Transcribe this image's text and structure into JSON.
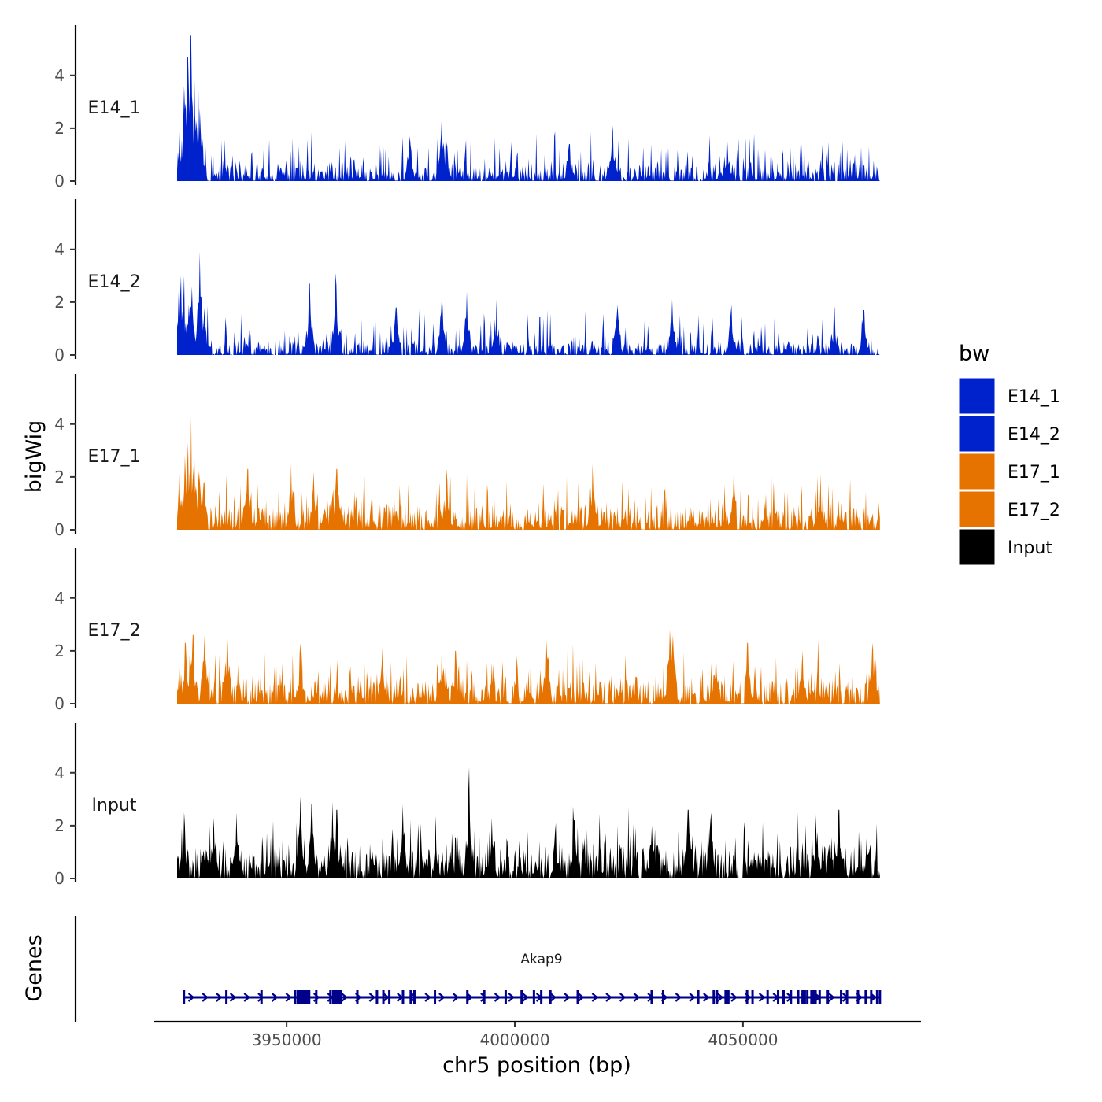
{
  "chart_data": {
    "type": "area",
    "ylabel": "bigWig",
    "xlabel": "chr5 position (bp)",
    "genes_label": "Genes",
    "ylim": [
      0,
      5.9
    ],
    "y_ticks": [
      0,
      2,
      4
    ],
    "y_tick_labels": [
      "0",
      "2",
      "4"
    ],
    "xlim": [
      3921000,
      4089000
    ],
    "region": [
      3926000,
      4080000
    ],
    "x_ticks": [
      3950000,
      4000000,
      4050000
    ],
    "x_tick_labels": [
      "3950000",
      "4000000",
      "4050000"
    ],
    "series": [
      {
        "name": "E14_1",
        "color": "#0022cc",
        "baseline": 0.35,
        "noise": 0.9,
        "seed": 11,
        "peaks": [
          [
            3926500,
            1.9
          ],
          [
            3927600,
            3.6
          ],
          [
            3928300,
            4.7
          ],
          [
            3929000,
            5.5
          ],
          [
            3929800,
            4.2
          ],
          [
            3930600,
            4.1
          ],
          [
            3931700,
            1.6
          ],
          [
            3984000,
            2.5
          ],
          [
            3984900,
            1.8
          ],
          [
            3977000,
            1.7
          ],
          [
            4021500,
            2.1
          ],
          [
            4046500,
            1.8
          ],
          [
            4012000,
            1.4
          ]
        ],
        "dips": [
          [
            3933000,
            800
          ],
          [
            3943000,
            500
          ],
          [
            3956500,
            600
          ],
          [
            3968000,
            500
          ],
          [
            3974000,
            800
          ],
          [
            3981500,
            700
          ],
          [
            4004000,
            500
          ],
          [
            4018000,
            600
          ],
          [
            4034500,
            800
          ],
          [
            4041000,
            500
          ],
          [
            4049500,
            600
          ],
          [
            4068000,
            400
          ]
        ]
      },
      {
        "name": "E14_2",
        "color": "#0022cc",
        "baseline": 0.3,
        "noise": 0.95,
        "seed": 23,
        "peaks": [
          [
            3926400,
            2.4
          ],
          [
            3926800,
            3.0
          ],
          [
            3927500,
            3.0
          ],
          [
            3929200,
            2.6
          ],
          [
            3931000,
            3.9
          ],
          [
            3932000,
            1.8
          ],
          [
            3955000,
            2.7
          ],
          [
            3960800,
            3.1
          ],
          [
            3974000,
            1.8
          ],
          [
            3984000,
            2.2
          ],
          [
            3989500,
            2.4
          ],
          [
            3996000,
            2.1
          ],
          [
            4022500,
            1.9
          ],
          [
            4034500,
            2.1
          ],
          [
            4047500,
            1.9
          ],
          [
            4070000,
            1.8
          ],
          [
            4076500,
            1.7
          ]
        ],
        "dips": [
          [
            3938000,
            400
          ],
          [
            3947000,
            600
          ],
          [
            3963500,
            500
          ],
          [
            3970000,
            800
          ],
          [
            3981000,
            500
          ],
          [
            4004000,
            600
          ],
          [
            4011500,
            400
          ],
          [
            4016000,
            500
          ],
          [
            4030500,
            800
          ],
          [
            4038000,
            500
          ],
          [
            4050500,
            600
          ],
          [
            4056500,
            500
          ],
          [
            4063000,
            400
          ],
          [
            4080000,
            600
          ]
        ]
      },
      {
        "name": "E17_1",
        "color": "#e67300",
        "baseline": 0.55,
        "noise": 1.0,
        "seed": 37,
        "peaks": [
          [
            3926500,
            2.2
          ],
          [
            3927700,
            2.8
          ],
          [
            3928400,
            3.3
          ],
          [
            3929100,
            4.3
          ],
          [
            3929800,
            3.0
          ],
          [
            3930800,
            2.2
          ],
          [
            3931900,
            1.8
          ],
          [
            3941500,
            2.3
          ],
          [
            3951000,
            2.5
          ],
          [
            3956000,
            2.2
          ],
          [
            3961000,
            2.3
          ],
          [
            3985000,
            2.3
          ],
          [
            4017000,
            2.5
          ],
          [
            4048000,
            2.4
          ],
          [
            4067000,
            2.1
          ]
        ],
        "dips": [
          [
            3933000,
            600
          ],
          [
            3957000,
            400
          ],
          [
            3980000,
            500
          ],
          [
            3992000,
            400
          ],
          [
            4000000,
            500
          ],
          [
            4011000,
            500
          ],
          [
            4028000,
            800
          ],
          [
            4036000,
            500
          ],
          [
            4049000,
            700
          ],
          [
            4053000,
            500
          ],
          [
            4064000,
            400
          ],
          [
            4073000,
            400
          ]
        ]
      },
      {
        "name": "E17_2",
        "color": "#e67300",
        "baseline": 0.55,
        "noise": 1.0,
        "seed": 53,
        "peaks": [
          [
            3926500,
            1.4
          ],
          [
            3927800,
            2.3
          ],
          [
            3929500,
            2.6
          ],
          [
            3932000,
            2.6
          ],
          [
            3937000,
            2.8
          ],
          [
            3953000,
            2.3
          ],
          [
            3971000,
            2.1
          ],
          [
            3984000,
            2.3
          ],
          [
            3987000,
            2.0
          ],
          [
            4007000,
            2.4
          ],
          [
            4034000,
            2.8
          ],
          [
            4034700,
            2.6
          ],
          [
            4044000,
            2.0
          ],
          [
            4051000,
            2.3
          ],
          [
            4063000,
            2.0
          ],
          [
            4078500,
            2.3
          ]
        ],
        "dips": [
          [
            3935000,
            400
          ],
          [
            3946000,
            500
          ],
          [
            3960000,
            400
          ],
          [
            3976000,
            500
          ],
          [
            3999000,
            600
          ],
          [
            4004500,
            400
          ],
          [
            4020000,
            800
          ],
          [
            4030000,
            600
          ],
          [
            4040000,
            400
          ],
          [
            4050000,
            700
          ],
          [
            4059000,
            400
          ],
          [
            4072000,
            500
          ]
        ]
      },
      {
        "name": "Input",
        "color": "#000000",
        "baseline": 0.75,
        "noise": 1.0,
        "seed": 71,
        "peaks": [
          [
            3927500,
            2.5
          ],
          [
            3934000,
            2.3
          ],
          [
            3939000,
            2.5
          ],
          [
            3953000,
            3.1
          ],
          [
            3955500,
            2.8
          ],
          [
            3960000,
            2.9
          ],
          [
            3961000,
            2.6
          ],
          [
            3975500,
            2.8
          ],
          [
            3990000,
            4.2
          ],
          [
            3995000,
            2.3
          ],
          [
            4009000,
            2.1
          ],
          [
            4013000,
            2.2
          ],
          [
            4030000,
            2.0
          ],
          [
            4038000,
            2.6
          ],
          [
            4043000,
            2.5
          ],
          [
            4066000,
            2.4
          ],
          [
            4071000,
            2.6
          ]
        ],
        "dips": [
          [
            4049500,
            1100
          ]
        ]
      }
    ],
    "legend": {
      "title": "bw",
      "entries": [
        {
          "label": "E14_1",
          "color": "#0022cc"
        },
        {
          "label": "E14_2",
          "color": "#0022cc"
        },
        {
          "label": "E17_1",
          "color": "#e67300"
        },
        {
          "label": "E17_2",
          "color": "#e67300"
        },
        {
          "label": "Input",
          "color": "#000000"
        }
      ]
    },
    "gene": {
      "name": "Akap9",
      "start": 3927500,
      "end": 4080000,
      "strand": "+",
      "color": "#00008b",
      "exons": [
        3927500,
        3936800,
        3944500,
        3951800,
        3952400,
        3953000,
        3953600,
        3954300,
        3956500,
        3959600,
        3960200,
        3960800,
        3961400,
        3965500,
        3969800,
        3971200,
        3972500,
        3975500,
        3977200,
        3978000,
        3982500,
        3989600,
        3993300,
        3998000,
        4001500,
        4004200,
        4005800,
        4007800,
        4013800,
        4030000,
        4032500,
        4040200,
        4043600,
        4044300,
        4046200,
        4046800,
        4050900,
        4052100,
        4055400,
        4057700,
        4058900,
        4060500,
        4062100,
        4063500,
        4064100,
        4065000,
        4065900,
        4066800,
        4068600,
        4071500,
        4072800,
        4075200,
        4076900,
        4078100,
        4079400,
        4080000
      ],
      "big_exons": [
        [
          3952200,
          3955200
        ],
        [
          3960400,
          3962200
        ],
        [
          4046000,
          4047000
        ],
        [
          4062800,
          4063800
        ],
        [
          4065000,
          4065700
        ]
      ]
    }
  }
}
